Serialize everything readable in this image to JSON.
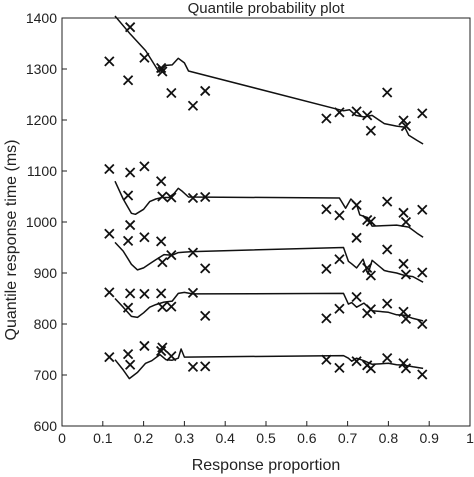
{
  "chart_data": {
    "type": "scatter",
    "title": "Quantile probability plot",
    "xlabel": "Response proportion",
    "ylabel": "Quantile response time (ms)",
    "xlim": [
      0,
      1
    ],
    "ylim": [
      600,
      1400
    ],
    "xticks": [
      "0",
      "0.1",
      "0.2",
      "0.3",
      "0.4",
      "0.5",
      "0.6",
      "0.7",
      "0.8",
      "0.9",
      "1"
    ],
    "yticks": [
      "600",
      "700",
      "800",
      "900",
      "1000",
      "1100",
      "1200",
      "1300",
      "1400"
    ],
    "grid": false,
    "series": [
      {
        "marker": "x",
        "points": [
          [
            0.116,
            1315
          ],
          [
            0.162,
            1278
          ],
          [
            0.167,
            1382
          ],
          [
            0.202,
            1322
          ],
          [
            0.243,
            1302
          ],
          [
            0.246,
            1295
          ],
          [
            0.268,
            1253
          ],
          [
            0.321,
            1228
          ],
          [
            0.351,
            1257
          ],
          [
            0.648,
            1203
          ],
          [
            0.68,
            1215
          ],
          [
            0.722,
            1217
          ],
          [
            0.748,
            1209
          ],
          [
            0.757,
            1179
          ],
          [
            0.797,
            1254
          ],
          [
            0.837,
            1199
          ],
          [
            0.843,
            1188
          ],
          [
            0.883,
            1213
          ],
          [
            0.116,
            1104
          ],
          [
            0.162,
            1052
          ],
          [
            0.167,
            1097
          ],
          [
            0.202,
            1109
          ],
          [
            0.243,
            1080
          ],
          [
            0.246,
            1050
          ],
          [
            0.268,
            1048
          ],
          [
            0.321,
            1047
          ],
          [
            0.351,
            1049
          ],
          [
            0.648,
            1025
          ],
          [
            0.68,
            1013
          ],
          [
            0.722,
            1033
          ],
          [
            0.748,
            1004
          ],
          [
            0.757,
            1001
          ],
          [
            0.797,
            1040
          ],
          [
            0.837,
            1018
          ],
          [
            0.843,
            1000
          ],
          [
            0.883,
            1024
          ],
          [
            0.116,
            977
          ],
          [
            0.162,
            963
          ],
          [
            0.167,
            994
          ],
          [
            0.202,
            970
          ],
          [
            0.243,
            962
          ],
          [
            0.246,
            921
          ],
          [
            0.268,
            935
          ],
          [
            0.321,
            940
          ],
          [
            0.351,
            909
          ],
          [
            0.648,
            908
          ],
          [
            0.68,
            927
          ],
          [
            0.722,
            969
          ],
          [
            0.748,
            910
          ],
          [
            0.757,
            895
          ],
          [
            0.797,
            946
          ],
          [
            0.837,
            918
          ],
          [
            0.843,
            897
          ],
          [
            0.883,
            901
          ],
          [
            0.116,
            862
          ],
          [
            0.162,
            832
          ],
          [
            0.167,
            860
          ],
          [
            0.202,
            859
          ],
          [
            0.243,
            860
          ],
          [
            0.246,
            833
          ],
          [
            0.268,
            834
          ],
          [
            0.321,
            861
          ],
          [
            0.351,
            816
          ],
          [
            0.648,
            811
          ],
          [
            0.68,
            830
          ],
          [
            0.722,
            853
          ],
          [
            0.748,
            821
          ],
          [
            0.757,
            829
          ],
          [
            0.797,
            840
          ],
          [
            0.837,
            824
          ],
          [
            0.843,
            810
          ],
          [
            0.883,
            800
          ],
          [
            0.116,
            735
          ],
          [
            0.162,
            741
          ],
          [
            0.167,
            720
          ],
          [
            0.202,
            757
          ],
          [
            0.243,
            747
          ],
          [
            0.246,
            754
          ],
          [
            0.268,
            737
          ],
          [
            0.321,
            716
          ],
          [
            0.351,
            717
          ],
          [
            0.648,
            730
          ],
          [
            0.68,
            714
          ],
          [
            0.722,
            727
          ],
          [
            0.748,
            719
          ],
          [
            0.757,
            713
          ],
          [
            0.797,
            733
          ],
          [
            0.837,
            723
          ],
          [
            0.843,
            713
          ],
          [
            0.883,
            701
          ]
        ]
      }
    ],
    "lines": [
      {
        "points": [
          [
            0.13,
            1404
          ],
          [
            0.168,
            1368
          ],
          [
            0.205,
            1336
          ],
          [
            0.238,
            1294
          ],
          [
            0.255,
            1307
          ],
          [
            0.27,
            1308
          ],
          [
            0.285,
            1321
          ],
          [
            0.3,
            1312
          ],
          [
            0.31,
            1296
          ],
          [
            0.69,
            1218
          ],
          [
            0.705,
            1220
          ],
          [
            0.72,
            1209
          ],
          [
            0.74,
            1206
          ],
          [
            0.76,
            1209
          ],
          [
            0.79,
            1193
          ],
          [
            0.82,
            1188
          ],
          [
            0.84,
            1186
          ],
          [
            0.85,
            1170
          ],
          [
            0.87,
            1160
          ],
          [
            0.885,
            1153
          ]
        ]
      },
      {
        "points": [
          [
            0.13,
            1080
          ],
          [
            0.15,
            1045
          ],
          [
            0.17,
            1017
          ],
          [
            0.18,
            1015
          ],
          [
            0.2,
            1025
          ],
          [
            0.215,
            1040
          ],
          [
            0.23,
            1045
          ],
          [
            0.245,
            1048
          ],
          [
            0.262,
            1048
          ],
          [
            0.275,
            1056
          ],
          [
            0.285,
            1066
          ],
          [
            0.295,
            1060
          ],
          [
            0.31,
            1049
          ],
          [
            0.68,
            1047
          ],
          [
            0.695,
            1027
          ],
          [
            0.708,
            1045
          ],
          [
            0.722,
            1034
          ],
          [
            0.73,
            1014
          ],
          [
            0.748,
            1009
          ],
          [
            0.76,
            992
          ],
          [
            0.79,
            993
          ],
          [
            0.82,
            994
          ],
          [
            0.85,
            990
          ],
          [
            0.87,
            978
          ],
          [
            0.885,
            970
          ]
        ]
      },
      {
        "points": [
          [
            0.13,
            960
          ],
          [
            0.15,
            943
          ],
          [
            0.17,
            917
          ],
          [
            0.185,
            906
          ],
          [
            0.2,
            910
          ],
          [
            0.215,
            918
          ],
          [
            0.23,
            926
          ],
          [
            0.25,
            936
          ],
          [
            0.27,
            935
          ],
          [
            0.285,
            940
          ],
          [
            0.3,
            941
          ],
          [
            0.32,
            942
          ],
          [
            0.69,
            950
          ],
          [
            0.702,
            923
          ],
          [
            0.71,
            918
          ],
          [
            0.722,
            910
          ],
          [
            0.738,
            927
          ],
          [
            0.75,
            898
          ],
          [
            0.76,
            925
          ],
          [
            0.79,
            905
          ],
          [
            0.8,
            903
          ],
          [
            0.82,
            900
          ],
          [
            0.84,
            895
          ],
          [
            0.86,
            893
          ],
          [
            0.885,
            882
          ]
        ]
      },
      {
        "points": [
          [
            0.13,
            850
          ],
          [
            0.15,
            833
          ],
          [
            0.17,
            815
          ],
          [
            0.185,
            813
          ],
          [
            0.2,
            822
          ],
          [
            0.215,
            833
          ],
          [
            0.23,
            838
          ],
          [
            0.25,
            843
          ],
          [
            0.27,
            845
          ],
          [
            0.285,
            860
          ],
          [
            0.3,
            862
          ],
          [
            0.32,
            859
          ],
          [
            0.69,
            860
          ],
          [
            0.702,
            839
          ],
          [
            0.71,
            842
          ],
          [
            0.722,
            833
          ],
          [
            0.74,
            841
          ],
          [
            0.76,
            826
          ],
          [
            0.8,
            823
          ],
          [
            0.82,
            818
          ],
          [
            0.84,
            817
          ],
          [
            0.86,
            811
          ],
          [
            0.885,
            806
          ]
        ]
      },
      {
        "points": [
          [
            0.13,
            730
          ],
          [
            0.15,
            710
          ],
          [
            0.165,
            693
          ],
          [
            0.185,
            705
          ],
          [
            0.205,
            723
          ],
          [
            0.22,
            728
          ],
          [
            0.24,
            740
          ],
          [
            0.255,
            730
          ],
          [
            0.27,
            729
          ],
          [
            0.285,
            733
          ],
          [
            0.292,
            751
          ],
          [
            0.3,
            735
          ],
          [
            0.69,
            738
          ],
          [
            0.702,
            733
          ],
          [
            0.71,
            727
          ],
          [
            0.722,
            733
          ],
          [
            0.74,
            728
          ],
          [
            0.76,
            721
          ],
          [
            0.8,
            723
          ],
          [
            0.82,
            720
          ],
          [
            0.84,
            719
          ],
          [
            0.86,
            716
          ],
          [
            0.885,
            713
          ]
        ]
      }
    ]
  }
}
